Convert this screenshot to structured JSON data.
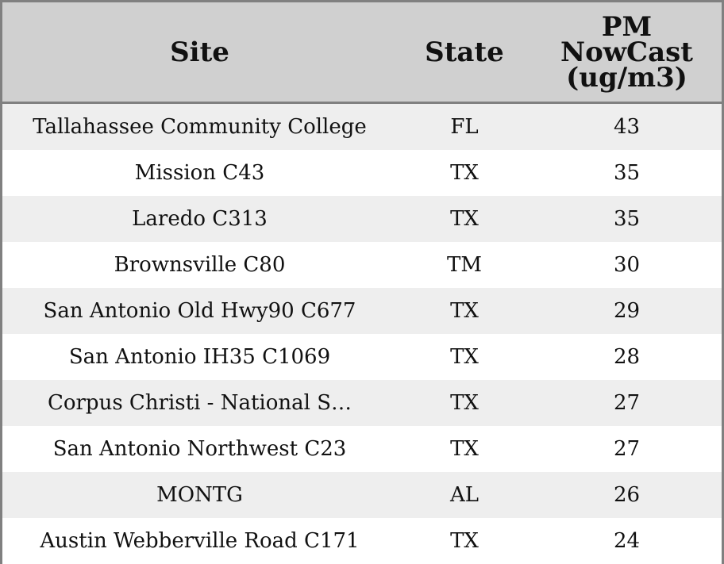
{
  "table": {
    "headers": {
      "site": "Site",
      "state": "State",
      "pm_line1": "PM",
      "pm_line2": "NowCast",
      "pm_line3": "(ug/m3)"
    },
    "rows": [
      {
        "site": "Tallahassee Community College",
        "state": "FL",
        "pm": "43"
      },
      {
        "site": "Mission C43",
        "state": "TX",
        "pm": "35"
      },
      {
        "site": "Laredo C313",
        "state": "TX",
        "pm": "35"
      },
      {
        "site": "Brownsville C80",
        "state": "TM",
        "pm": "30"
      },
      {
        "site": "San Antonio Old Hwy90 C677",
        "state": "TX",
        "pm": "29"
      },
      {
        "site": "San Antonio IH35 C1069",
        "state": "TX",
        "pm": "28"
      },
      {
        "site": "Corpus Christi - National S…",
        "state": "TX",
        "pm": "27"
      },
      {
        "site": "San Antonio Northwest C23",
        "state": "TX",
        "pm": "27"
      },
      {
        "site": "MONTG",
        "state": "AL",
        "pm": "26"
      },
      {
        "site": "Austin Webberville Road C171",
        "state": "TX",
        "pm": "24"
      }
    ]
  },
  "colors": {
    "header_bg": "#d0d0d0",
    "row_alt_bg": "#eeeeee",
    "border": "#808080"
  }
}
